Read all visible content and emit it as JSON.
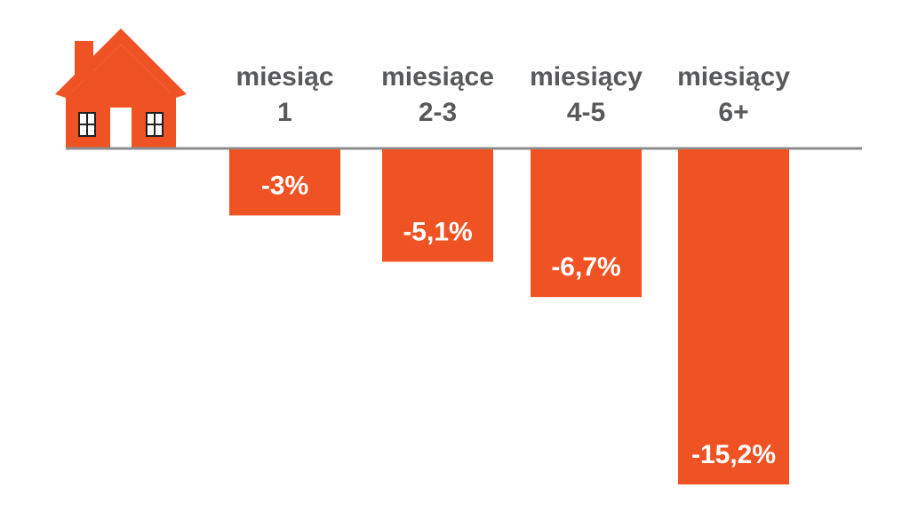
{
  "icon": "house-icon",
  "colors": {
    "bar": "#f05323",
    "baseline": "#8c8c8c",
    "category_text": "#58595b",
    "label_text": "#ffffff"
  },
  "chart_data": {
    "type": "bar",
    "orientation": "vertical-negative",
    "categories": [
      [
        "miesiąc",
        "1"
      ],
      [
        "miesiące",
        "2-3"
      ],
      [
        "miesiący",
        "4-5"
      ],
      [
        "miesiący",
        "6+"
      ]
    ],
    "values": [
      -3,
      -5.1,
      -6.7,
      -15.2
    ],
    "data_labels": [
      "-3%",
      "-5,1%",
      "-6,7%",
      "-15,2%"
    ],
    "category_position": "top",
    "ylim": [
      -15.2,
      0
    ],
    "grid": false,
    "legend": "none"
  }
}
